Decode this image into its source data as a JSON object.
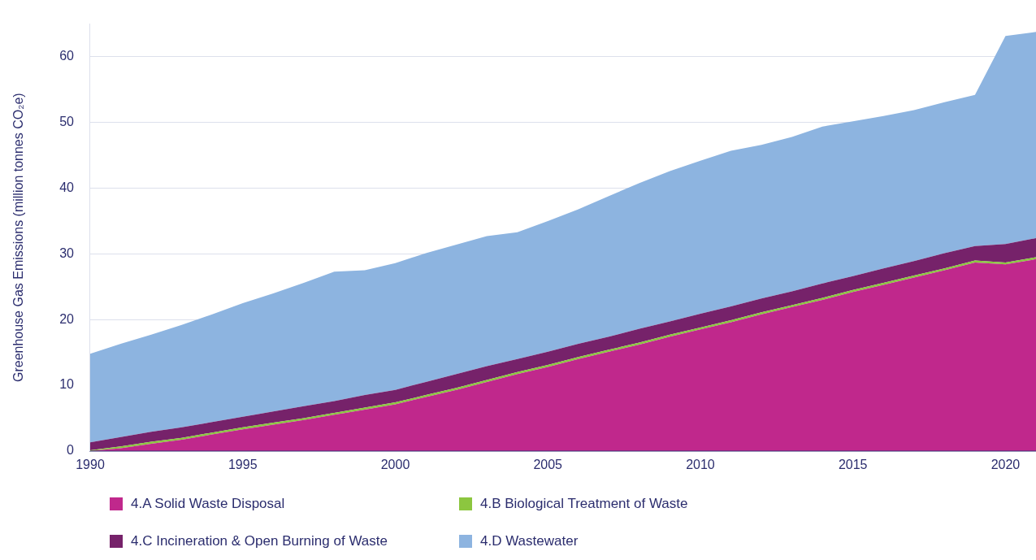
{
  "chart_data": {
    "type": "area",
    "ylabel": "Greenhouse Gas Emissions (million tonnes CO₂e)",
    "stacked": true,
    "x": [
      1990,
      1991,
      1992,
      1993,
      1994,
      1995,
      1996,
      1997,
      1998,
      1999,
      2000,
      2001,
      2002,
      2003,
      2004,
      2005,
      2006,
      2007,
      2008,
      2009,
      2010,
      2011,
      2012,
      2013,
      2014,
      2015,
      2016,
      2017,
      2018,
      2019,
      2020,
      2021
    ],
    "series": [
      {
        "name": "4.A Solid Waste Disposal",
        "color": "#c0288c",
        "values": [
          0,
          0.4,
          1.1,
          1.7,
          2.5,
          3.3,
          4.0,
          4.7,
          5.5,
          6.3,
          7.1,
          8.2,
          9.3,
          10.5,
          11.7,
          12.8,
          14.0,
          15.1,
          16.2,
          17.4,
          18.5,
          19.6,
          20.8,
          21.9,
          23.0,
          24.2,
          25.3,
          26.4,
          27.5,
          28.7,
          28.4,
          29.2
        ]
      },
      {
        "name": "4.B Biological Treatment of Waste",
        "color": "#8cc63f",
        "values": [
          0.1,
          0.3,
          0.3,
          0.3,
          0.3,
          0.3,
          0.3,
          0.3,
          0.3,
          0.3,
          0.3,
          0.3,
          0.3,
          0.3,
          0.3,
          0.3,
          0.3,
          0.3,
          0.3,
          0.3,
          0.3,
          0.3,
          0.3,
          0.3,
          0.3,
          0.3,
          0.3,
          0.3,
          0.3,
          0.3,
          0.3,
          0.3
        ]
      },
      {
        "name": "4.C Incineration & Open Burning of Waste",
        "color": "#76226a",
        "values": [
          1.2,
          1.4,
          1.5,
          1.6,
          1.6,
          1.6,
          1.7,
          1.8,
          1.8,
          1.9,
          1.9,
          2.0,
          2.1,
          2.1,
          2.0,
          2.0,
          2.0,
          2.0,
          2.1,
          2.0,
          2.1,
          2.1,
          2.1,
          2.1,
          2.2,
          2.1,
          2.2,
          2.2,
          2.3,
          2.2,
          2.8,
          2.9
        ]
      },
      {
        "name": "4.D Wastewater",
        "color": "#8db4e0",
        "values": [
          13.5,
          14.2,
          14.8,
          15.6,
          16.4,
          17.3,
          18.0,
          18.8,
          19.7,
          19.0,
          19.3,
          19.6,
          19.7,
          19.8,
          19.3,
          19.9,
          20.5,
          21.4,
          22.2,
          22.9,
          23.3,
          23.7,
          23.4,
          23.5,
          23.9,
          23.6,
          23.2,
          23.0,
          23.0,
          23.0,
          31.7,
          31.4
        ]
      }
    ],
    "xlim": [
      1990,
      2021
    ],
    "xticks": [
      1990,
      1995,
      2000,
      2005,
      2010,
      2015,
      2020
    ],
    "ylim": [
      0,
      65
    ],
    "yticks": [
      0,
      10,
      20,
      30,
      40,
      50,
      60
    ],
    "grid": "y",
    "legend": "bottom"
  }
}
